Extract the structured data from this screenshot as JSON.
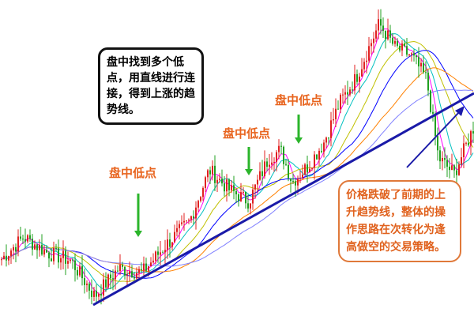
{
  "chart_data": {
    "type": "candlestick",
    "title": "",
    "xlabel": "",
    "ylabel": "",
    "grid": false,
    "price": [
      7,
      10,
      8,
      7,
      2.5,
      6,
      5.5,
      9,
      12,
      18.5,
      16,
      14.5,
      20,
      21,
      17,
      19,
      22,
      27,
      30,
      37,
      34,
      33,
      30,
      20,
      18,
      24
    ],
    "colors": {
      "up": "#e02020",
      "down": "#20a020",
      "trendline": "#1a1aa8",
      "arrow_green": "#2bb52b",
      "label": "#e8641e",
      "ma": [
        "#ff00ff",
        "#00c0c0",
        "#c0c000",
        "#0000ff",
        "#ff8000",
        "#8080ff"
      ]
    },
    "annotations": {
      "low_points": [
        "盘中低点",
        "盘中低点",
        "盘中低点"
      ],
      "note_trend": "盘中找到多个低点，用直线进行连接，得到上涨的趋势线。",
      "note_break": "价格跌破了前期的上升趋势线，整体的操作思路在次转化为逢高做空的交易策略。"
    }
  }
}
